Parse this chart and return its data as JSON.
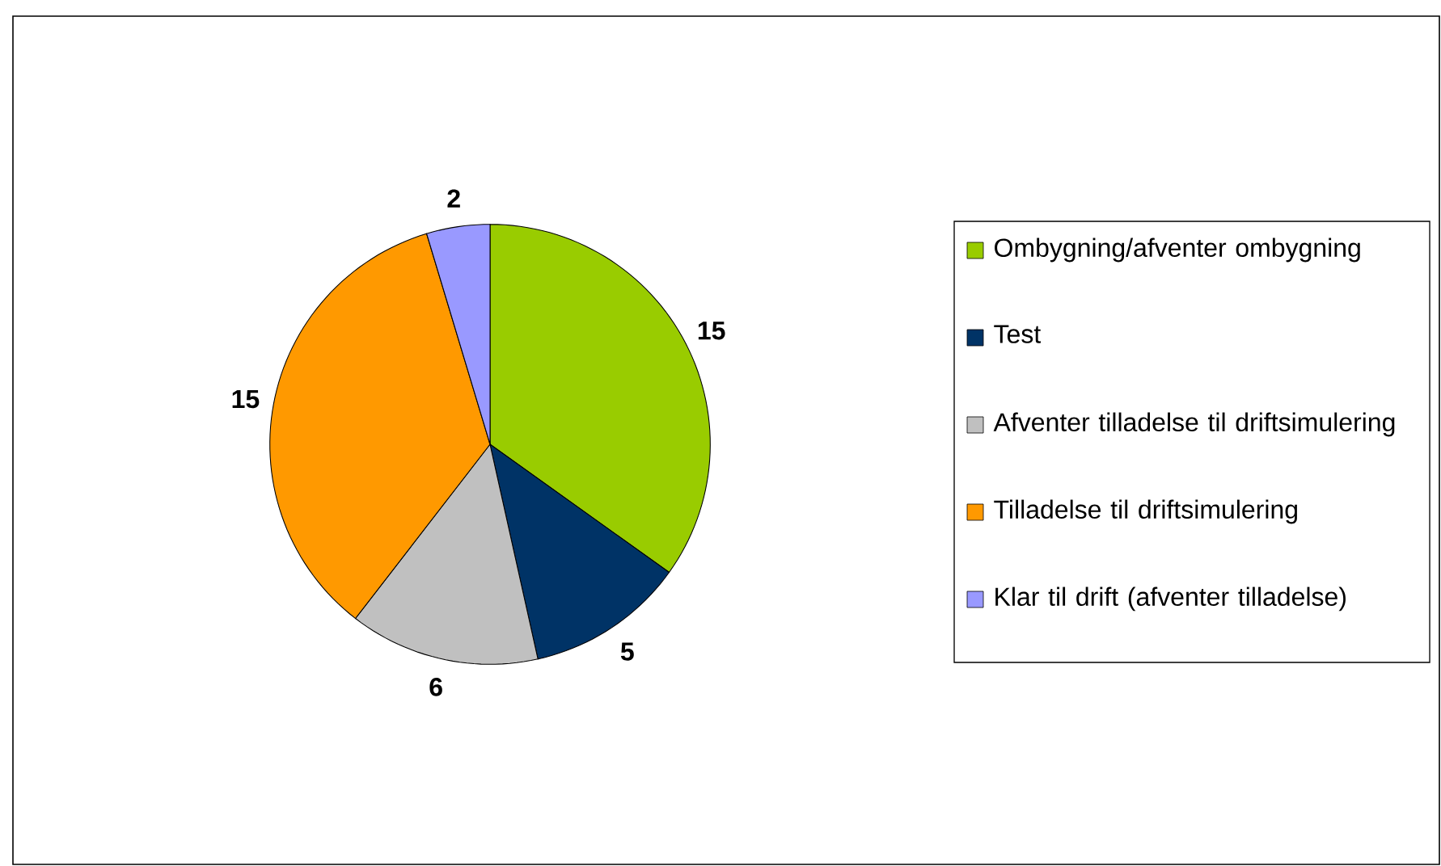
{
  "chart_data": {
    "type": "pie",
    "categories": [
      "Ombygning/afventer ombygning",
      "Test",
      "Afventer tilladelse til driftsimulering",
      "Tilladelse til driftsimulering",
      "Klar til drift (afventer tilladelse)"
    ],
    "values": [
      15,
      5,
      6,
      15,
      2
    ],
    "colors": [
      "#99cc00",
      "#003366",
      "#c0c0c0",
      "#ff9900",
      "#9999ff"
    ],
    "data_labels": true,
    "legend": "right"
  }
}
